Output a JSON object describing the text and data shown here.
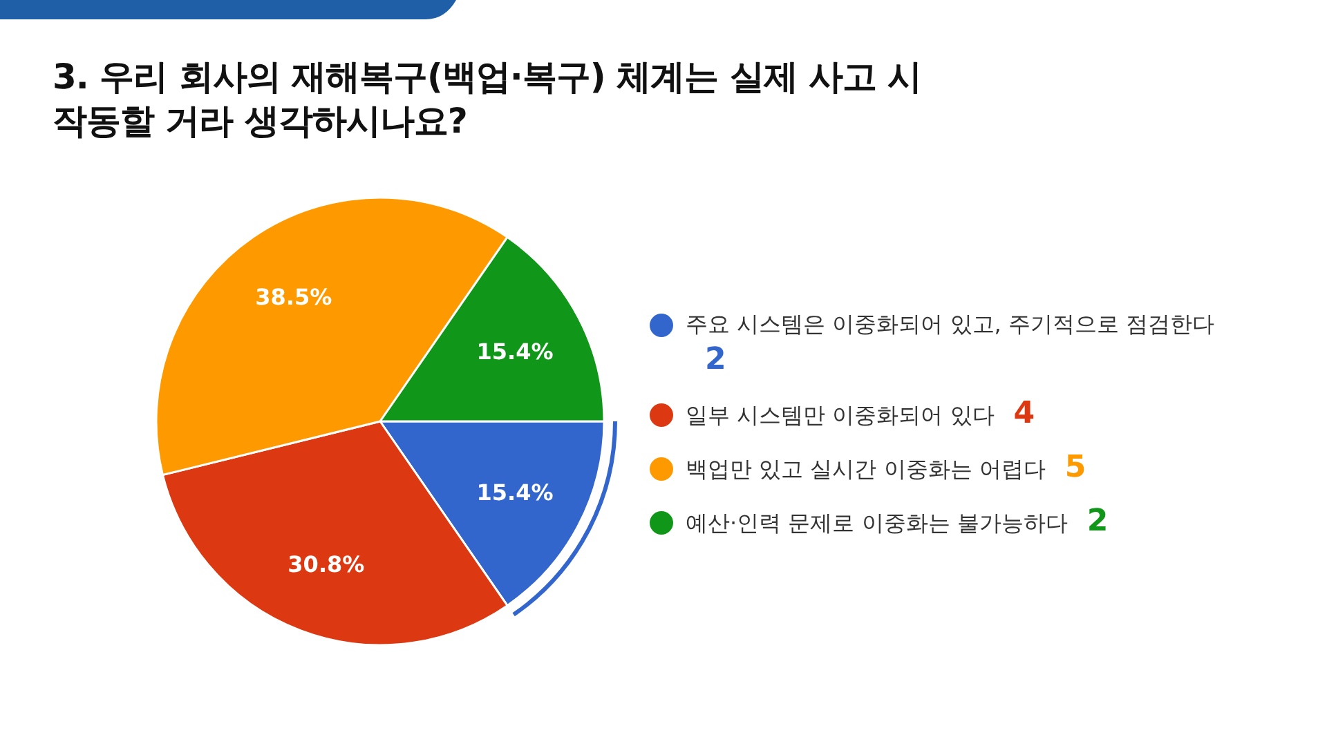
{
  "chart_data": {
    "type": "pie",
    "title": "3. 우리 회사의 재해복구(백업·복구) 체계는  실제 사고 시\n작동할 거라 생각하시나요?",
    "categories": [
      "주요 시스템은 이중화되어 있고, 주기적으로 점검한다",
      "일부 시스템만 이중화되어 있다",
      "백업만 있고 실시간 이중화는 어렵다",
      "예산·인력 문제로 이중화는 불가능하다"
    ],
    "values": [
      15.4,
      30.8,
      38.5,
      15.4
    ],
    "annotations": [
      "2",
      "4",
      "5",
      "2"
    ],
    "value_labels": [
      "15.4%",
      "30.8%",
      "38.5%",
      "15.4%"
    ],
    "colors": [
      "#3366cc",
      "#dc3912",
      "#ff9900",
      "#109618"
    ],
    "legend": "right"
  }
}
